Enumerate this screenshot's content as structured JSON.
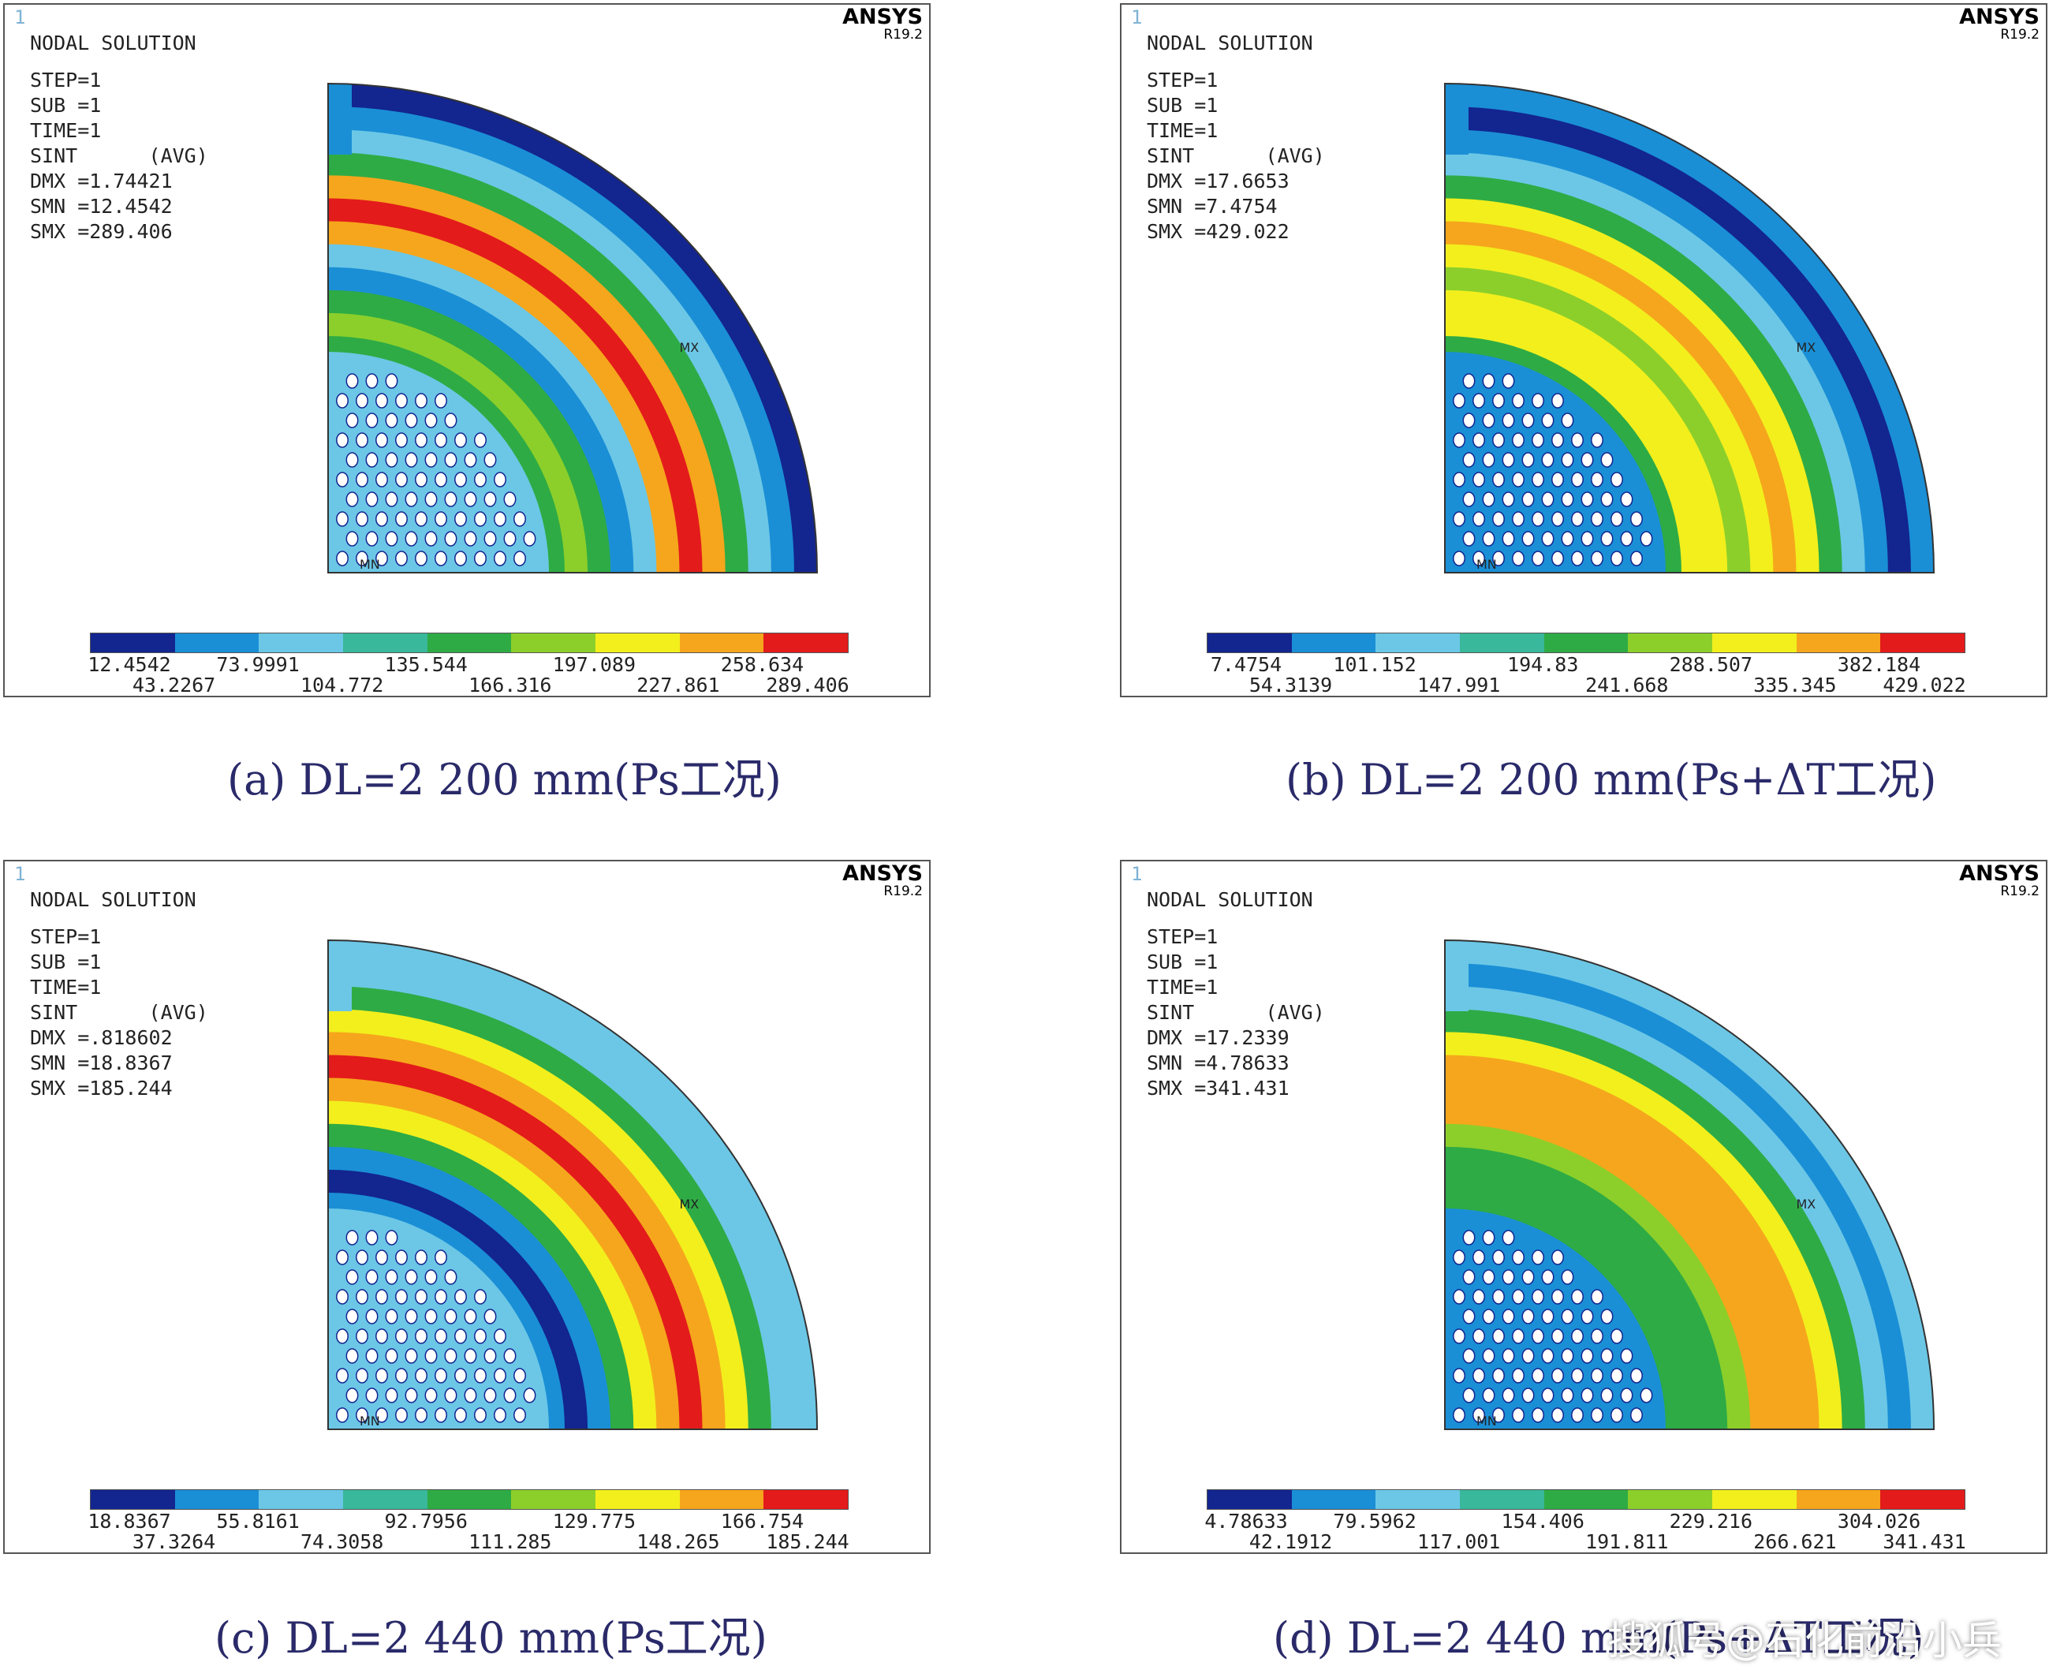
{
  "legend_colors": [
    "#13258f",
    "#1a8fd6",
    "#6cc7e6",
    "#39b89b",
    "#2eab45",
    "#8ccf2a",
    "#f2ef1d",
    "#f6a61c",
    "#e31b1b"
  ],
  "panels": [
    {
      "id": "a",
      "number": "1",
      "brand": "ANSYS",
      "version": "R19.2",
      "header": "NODAL SOLUTION",
      "info": [
        "STEP=1",
        "SUB =1",
        "TIME=1",
        "SINT      (AVG)",
        "DMX =1.74421",
        "SMN =12.4542",
        "SMX =289.406"
      ],
      "legend_top": [
        "12.4542",
        "73.9991",
        "135.544",
        "197.089",
        "258.634"
      ],
      "legend_bottom": [
        "43.2267",
        "104.772",
        "166.316",
        "227.861",
        "289.406"
      ],
      "caption": "(a) DL=2 200 mm(Ps工况)",
      "markers": {
        "mx": "MX",
        "mn": "MN"
      },
      "colormap": {
        "plate": "#6cc7e6",
        "patch": "#2eab45",
        "bands": [
          "#8ccf2a",
          "#2eab45",
          "#1a8fd6",
          "#6cc7e6",
          "#f6a61c",
          "#e31b1b",
          "#f6a61c",
          "#2eab45",
          "#6cc7e6",
          "#1a8fd6",
          "#13258f"
        ],
        "cap": "#1a8fd6"
      }
    },
    {
      "id": "b",
      "number": "1",
      "brand": "ANSYS",
      "version": "R19.2",
      "header": "NODAL SOLUTION",
      "info": [
        "STEP=1",
        "SUB =1",
        "TIME=1",
        "SINT      (AVG)",
        "DMX =17.6653",
        "SMN =7.4754",
        "SMX =429.022"
      ],
      "legend_top": [
        "7.4754",
        "101.152",
        "194.83",
        "288.507",
        "382.184"
      ],
      "legend_bottom": [
        "54.3139",
        "147.991",
        "241.668",
        "335.345",
        "429.022"
      ],
      "caption": "(b) DL=2 200 mm(Ps+ΔT工况)",
      "markers": {
        "mx": "MX",
        "mn": "MN"
      },
      "colormap": {
        "plate": "#1a8fd6",
        "patch": "#2eab45",
        "bands": [
          "#f2ef1d",
          "#f2ef1d",
          "#8ccf2a",
          "#f2ef1d",
          "#f6a61c",
          "#f2ef1d",
          "#2eab45",
          "#6cc7e6",
          "#1a8fd6",
          "#13258f",
          "#1a8fd6"
        ],
        "cap": "#1a8fd6"
      }
    },
    {
      "id": "c",
      "number": "1",
      "brand": "ANSYS",
      "version": "R19.2",
      "header": "NODAL SOLUTION",
      "info": [
        "STEP=1",
        "SUB =1",
        "TIME=1",
        "SINT      (AVG)",
        "DMX =.818602",
        "SMN =18.8367",
        "SMX =185.244"
      ],
      "legend_top": [
        "18.8367",
        "55.8161",
        "92.7956",
        "129.775",
        "166.754"
      ],
      "legend_bottom": [
        "37.3264",
        "74.3058",
        "111.285",
        "148.265",
        "185.244"
      ],
      "caption": "(c) DL=2 440 mm(Ps工况)",
      "markers": {
        "mx": "MX",
        "mn": "MN"
      },
      "colormap": {
        "plate": "#6cc7e6",
        "patch": "#1a8fd6",
        "bands": [
          "#13258f",
          "#1a8fd6",
          "#2eab45",
          "#f2ef1d",
          "#f6a61c",
          "#e31b1b",
          "#f6a61c",
          "#f2ef1d",
          "#2eab45",
          "#6cc7e6",
          "#6cc7e6"
        ],
        "cap": "#6cc7e6"
      }
    },
    {
      "id": "d",
      "number": "1",
      "brand": "ANSYS",
      "version": "R19.2",
      "header": "NODAL SOLUTION",
      "info": [
        "STEP=1",
        "SUB =1",
        "TIME=1",
        "SINT      (AVG)",
        "DMX =17.2339",
        "SMN =4.78633",
        "SMX =341.431"
      ],
      "legend_top": [
        "4.78633",
        "79.5962",
        "154.406",
        "229.216",
        "304.026"
      ],
      "legend_bottom": [
        "42.1912",
        "117.001",
        "191.811",
        "266.621",
        "341.431"
      ],
      "caption": "(d) DL=2 440 mm(Ps+ΔT工况)",
      "markers": {
        "mx": "MX",
        "mn": "MN"
      },
      "colormap": {
        "plate": "#1a8fd6",
        "patch": "#2eab45",
        "bands": [
          "#2eab45",
          "#2eab45",
          "#8ccf2a",
          "#f6a61c",
          "#f6a61c",
          "#f6a61c",
          "#f2ef1d",
          "#2eab45",
          "#6cc7e6",
          "#1a8fd6",
          "#6cc7e6"
        ],
        "cap": "#6cc7e6"
      }
    }
  ],
  "watermark": "搜狐号@石化前沿小兵"
}
